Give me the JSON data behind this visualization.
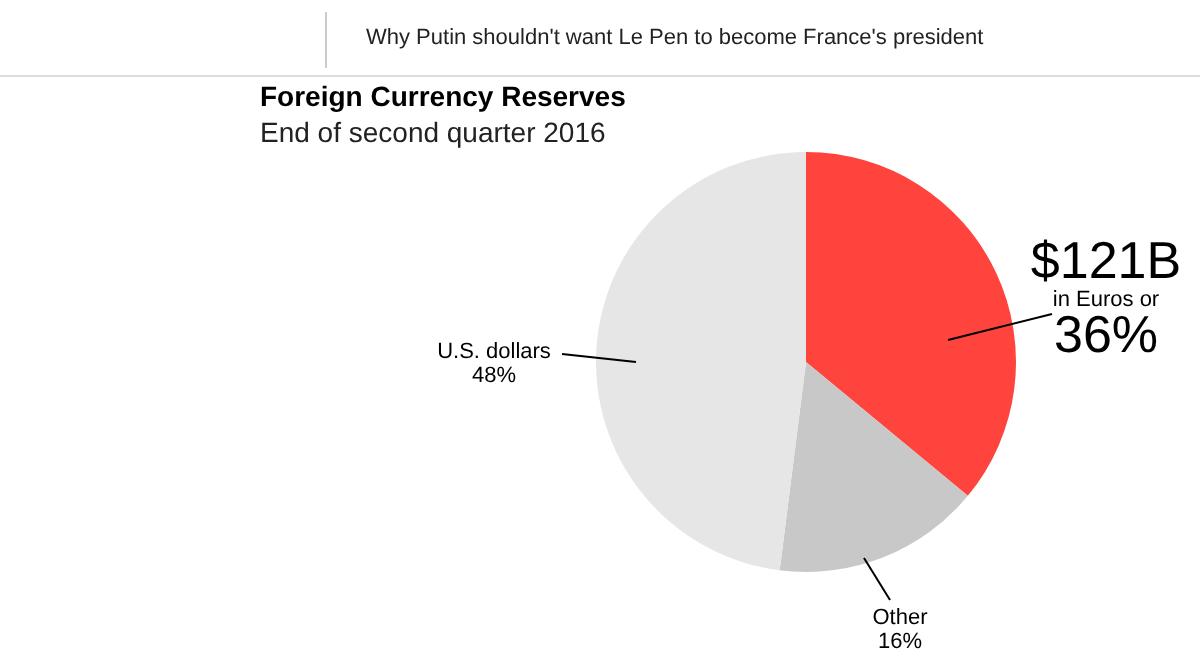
{
  "chart_data": {
    "type": "pie",
    "title": "Foreign Currency Reserves",
    "subtitle": "End of second quarter 2016",
    "categories": [
      "in Euros or",
      "Other",
      "U.S. dollars"
    ],
    "values": [
      36,
      16,
      48
    ],
    "colors": [
      "#ff433d",
      "#c8c8c8",
      "#e6e6e6"
    ],
    "value_labels": [
      "36%",
      "16%",
      "48%"
    ],
    "annotations": [
      "Why Putin shouldn't want Le Pen to become France's president",
      {
        "text": "$121B",
        "x": "in Euros or"
      }
    ]
  }
}
